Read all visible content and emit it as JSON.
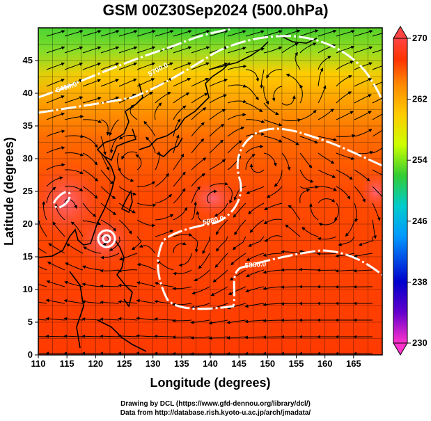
{
  "title": "GSM 00Z30Sep2024 (500.0hPa)",
  "x_axis": {
    "label": "Longitude (degrees)",
    "ticks": [
      "110",
      "115",
      "120",
      "125",
      "130",
      "135",
      "140",
      "145",
      "150",
      "155",
      "160",
      "165"
    ],
    "range": [
      110,
      170
    ]
  },
  "y_axis": {
    "label": "Latitude (degrees)",
    "ticks": [
      "0",
      "5",
      "10",
      "15",
      "20",
      "25",
      "30",
      "35",
      "40",
      "45"
    ],
    "range": [
      0,
      50
    ]
  },
  "colorbar": {
    "ticks": [
      "270",
      "262",
      "254",
      "246",
      "238",
      "230"
    ],
    "range": [
      230,
      270
    ],
    "colors": [
      "#ff33cc",
      "#6600cc",
      "#0000cc",
      "#0099ff",
      "#00cccc",
      "#33cc33",
      "#ccff00",
      "#ffcc00",
      "#ff8800",
      "#ff3300",
      "#ff4444"
    ]
  },
  "contours": [
    {
      "label": "5400.0",
      "color": "#ffffff"
    },
    {
      "label": "5700.0",
      "color": "#ffffff"
    },
    {
      "label": "5880.0",
      "color": "#ffffff"
    },
    {
      "label": "5880.0",
      "color": "#ffffff"
    }
  ],
  "credits": {
    "line1": "Drawing by DCL (https://www.gfd-dennou.org/library/dcl/)",
    "line2": "Data from http://database.rish.kyoto-u.ac.jp/arch/jmadata/"
  }
}
